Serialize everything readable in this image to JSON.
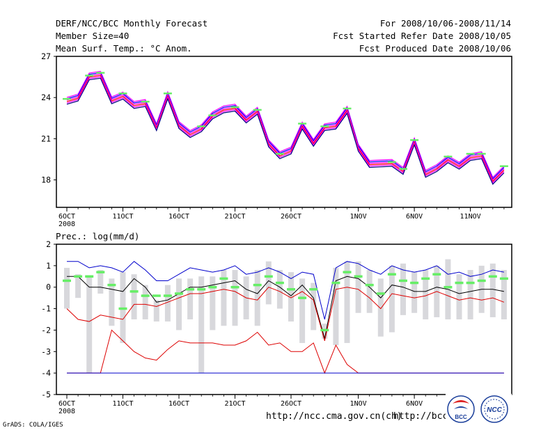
{
  "header": {
    "title": "DERF/NCC/BCC Monthly Forecast",
    "member_size": "Member Size=40",
    "variable_top": "Mean Surf. Temp.: °C Anom.",
    "period": "For 2008/10/06-2008/11/14",
    "started": "Fcst Started Refer Date 2008/10/05",
    "produced": "Fcst Produced Date 2008/10/06"
  },
  "footer": {
    "url1": "http://ncc.cma.gov.cn(ch)",
    "url2": "http://bcc.",
    "grads": "GrADS: COLA/IGES",
    "logo_bcc_text": "BCC",
    "logo_ncc_text": "NCC"
  },
  "colors": {
    "ensemble_lines": "#ff00ff",
    "blue": "#0000cc",
    "red": "#dd0000",
    "black": "#000000",
    "obs_marker": "#66ee66",
    "box": "#d8d8dc"
  },
  "chart_data": [
    {
      "type": "line",
      "title": "Mean Surf. Temp.: °C Anom.",
      "ylim": [
        16,
        27
      ],
      "yticks": [
        18,
        21,
        24,
        27
      ],
      "x_tick_labels": [
        "6OCT",
        "11OCT",
        "16OCT",
        "21OCT",
        "26OCT",
        "1NOV",
        "6NOV",
        "11NOV"
      ],
      "x_tick_days": [
        1,
        6,
        11,
        16,
        21,
        27,
        32,
        37
      ],
      "year_label": "2008",
      "x": [
        1,
        2,
        3,
        4,
        5,
        6,
        7,
        8,
        9,
        10,
        11,
        12,
        13,
        14,
        15,
        16,
        17,
        18,
        19,
        20,
        21,
        22,
        23,
        24,
        25,
        26,
        27,
        28,
        29,
        30,
        31,
        32,
        33,
        34,
        35,
        36,
        37,
        38,
        39,
        40
      ],
      "series": [
        {
          "name": "ensemble_mean",
          "values": [
            23.8,
            24.0,
            25.5,
            25.7,
            23.8,
            24.1,
            23.5,
            23.6,
            21.8,
            24.2,
            22.0,
            21.3,
            21.8,
            22.7,
            23.1,
            23.3,
            22.4,
            23.0,
            20.7,
            19.8,
            20.1,
            22.0,
            20.7,
            21.8,
            22.0,
            23.1,
            20.3,
            19.2,
            19.2,
            19.2,
            18.7,
            20.8,
            18.4,
            18.9,
            19.5,
            19.0,
            19.7,
            19.8,
            17.9,
            18.8
          ]
        }
      ],
      "obs_markers": [
        23.9,
        null,
        25.6,
        25.8,
        null,
        24.3,
        null,
        23.7,
        null,
        24.3,
        null,
        null,
        21.9,
        22.7,
        null,
        23.3,
        null,
        23.1,
        null,
        19.9,
        null,
        22.1,
        null,
        21.9,
        null,
        23.2,
        null,
        null,
        null,
        19.3,
        18.8,
        20.9,
        null,
        null,
        19.7,
        null,
        19.9,
        19.9,
        null,
        19.0
      ]
    },
    {
      "type": "line",
      "title": "Prec.: log(mm/d)",
      "ylim": [
        -5,
        2
      ],
      "yticks": [
        -5,
        -4,
        -3,
        -2,
        -1,
        0,
        1,
        2
      ],
      "x_tick_labels": [
        "6OCT",
        "11OCT",
        "16OCT",
        "21OCT",
        "26OCT",
        "1NOV",
        "6NOV",
        "11NOV"
      ],
      "x_tick_days": [
        1,
        6,
        11,
        16,
        21,
        27,
        32,
        37
      ],
      "year_label": "2008",
      "x": [
        1,
        2,
        3,
        4,
        5,
        6,
        7,
        8,
        9,
        10,
        11,
        12,
        13,
        14,
        15,
        16,
        17,
        18,
        19,
        20,
        21,
        22,
        23,
        24,
        25,
        26,
        27,
        28,
        29,
        30,
        31,
        32,
        33,
        34,
        35,
        36,
        37,
        38,
        39,
        40
      ],
      "series": [
        {
          "name": "blue_upper",
          "color": "blue",
          "values": [
            1.2,
            1.2,
            0.9,
            1.0,
            0.9,
            0.7,
            1.2,
            0.8,
            0.3,
            0.3,
            0.6,
            0.9,
            0.8,
            0.7,
            0.8,
            1.0,
            0.6,
            0.7,
            0.9,
            0.7,
            0.4,
            0.7,
            0.6,
            -1.5,
            0.9,
            1.2,
            1.1,
            0.8,
            0.6,
            1.0,
            0.8,
            0.7,
            0.8,
            1.0,
            0.6,
            0.7,
            0.5,
            0.6,
            0.8,
            0.7
          ]
        },
        {
          "name": "black_median",
          "color": "black",
          "values": [
            0.5,
            0.5,
            0.0,
            0.0,
            -0.1,
            -0.2,
            0.4,
            0.0,
            -0.7,
            -0.6,
            -0.3,
            0.0,
            0.0,
            0.1,
            0.2,
            0.3,
            -0.1,
            -0.3,
            0.3,
            0.0,
            -0.4,
            0.1,
            -0.5,
            -2.4,
            0.3,
            0.5,
            0.4,
            0.0,
            -0.5,
            0.1,
            0.0,
            -0.2,
            -0.2,
            0.0,
            -0.1,
            -0.3,
            -0.2,
            -0.1,
            -0.1,
            -0.2
          ]
        },
        {
          "name": "red_upper",
          "color": "red",
          "values": [
            -1.0,
            -1.5,
            -1.6,
            -1.3,
            -1.4,
            -1.5,
            -0.8,
            -0.8,
            -0.9,
            -0.7,
            -0.5,
            -0.3,
            -0.3,
            -0.2,
            -0.1,
            -0.2,
            -0.5,
            -0.6,
            0.0,
            -0.2,
            -0.5,
            -0.2,
            -0.6,
            -2.5,
            -0.1,
            0.0,
            -0.1,
            -0.5,
            -1.0,
            -0.3,
            -0.4,
            -0.5,
            -0.4,
            -0.2,
            -0.4,
            -0.6,
            -0.5,
            -0.6,
            -0.5,
            -0.7
          ]
        },
        {
          "name": "red_lower",
          "color": "red",
          "values": [
            -4.0,
            -4.0,
            -4.0,
            -4.0,
            -2.0,
            -2.5,
            -3.0,
            -3.3,
            -3.4,
            -2.9,
            -2.5,
            -2.6,
            -2.6,
            -2.6,
            -2.7,
            -2.7,
            -2.5,
            -2.1,
            -2.7,
            -2.6,
            -3.0,
            -3.0,
            -2.6,
            -4.0,
            -2.7,
            -3.6,
            -4.0,
            -4.0,
            -4.0,
            -4.0,
            -4.0,
            -4.0,
            -4.0,
            -4.0,
            -4.0,
            -4.0,
            -4.0,
            -4.0,
            -4.0,
            -4.0
          ]
        },
        {
          "name": "blue_lower",
          "color": "blue",
          "values": [
            -4.0,
            -4.0,
            -4.0,
            -4.0,
            -4.0,
            -4.0,
            -4.0,
            -4.0,
            -4.0,
            -4.0,
            -4.0,
            -4.0,
            -4.0,
            -4.0,
            -4.0,
            -4.0,
            -4.0,
            -4.0,
            -4.0,
            -4.0,
            -4.0,
            -4.0,
            -4.0,
            -4.0,
            -4.0,
            -4.0,
            -4.0,
            -4.0,
            -4.0,
            -4.0,
            -4.0,
            -4.0,
            -4.0,
            -4.0,
            -4.0,
            -4.0,
            -4.0,
            -4.0,
            -4.0,
            -4.0
          ]
        }
      ],
      "boxes": [
        [
          -1.0,
          0.9
        ],
        [
          -0.5,
          0.6
        ],
        [
          -4.0,
          0.5
        ],
        [
          -0.3,
          0.8
        ],
        [
          -1.8,
          0.4
        ],
        [
          -2.6,
          0.7
        ],
        [
          -1.5,
          0.6
        ],
        [
          -1.5,
          0.1
        ],
        [
          -1.6,
          -0.6
        ],
        [
          -1.6,
          0.1
        ],
        [
          -2.0,
          0.4
        ],
        [
          -1.5,
          0.4
        ],
        [
          -4.0,
          0.5
        ],
        [
          -2.0,
          0.5
        ],
        [
          -1.8,
          0.8
        ],
        [
          -1.8,
          0.8
        ],
        [
          -1.5,
          0.5
        ],
        [
          -1.8,
          0.8
        ],
        [
          -0.8,
          1.2
        ],
        [
          -1.0,
          0.8
        ],
        [
          -1.6,
          0.7
        ],
        [
          -2.6,
          0.4
        ],
        [
          -2.0,
          0.2
        ],
        [
          -2.4,
          -1.7
        ],
        [
          -2.7,
          0.9
        ],
        [
          -2.6,
          1.2
        ],
        [
          -1.2,
          1.2
        ],
        [
          -1.2,
          0.8
        ],
        [
          -2.3,
          0.4
        ],
        [
          -2.1,
          1.0
        ],
        [
          -1.3,
          1.1
        ],
        [
          -1.2,
          0.7
        ],
        [
          -1.5,
          0.8
        ],
        [
          -1.4,
          1.0
        ],
        [
          -1.5,
          1.3
        ],
        [
          -1.5,
          0.6
        ],
        [
          -1.5,
          0.8
        ],
        [
          -1.2,
          1.0
        ],
        [
          -1.4,
          1.1
        ],
        [
          -1.5,
          0.8
        ]
      ],
      "obs_markers": [
        0.3,
        0.5,
        0.5,
        0.7,
        0.1,
        -1.0,
        -0.2,
        -0.4,
        -0.4,
        -0.4,
        -0.3,
        -0.1,
        -0.1,
        0.0,
        0.4,
        0.0,
        null,
        0.1,
        0.5,
        0.2,
        -0.1,
        -0.5,
        -0.1,
        -2.0,
        0.2,
        0.7,
        0.5,
        0.1,
        -0.3,
        0.6,
        0.3,
        0.2,
        0.4,
        0.6,
        0.0,
        0.2,
        0.2,
        0.3,
        0.5,
        0.4
      ]
    }
  ]
}
